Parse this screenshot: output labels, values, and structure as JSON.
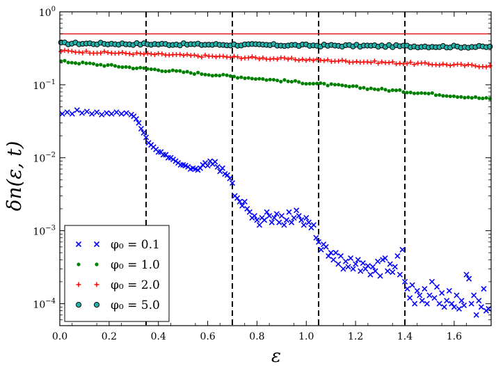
{
  "chart_data": {
    "type": "scatter",
    "title": "",
    "xlabel": "ε",
    "ylabel": "δn(ε, t)",
    "xlim": [
      0.0,
      1.75
    ],
    "ylim": [
      5e-05,
      1.0
    ],
    "yscale": "log",
    "grid": false,
    "legend_position": "lower-left",
    "x_ticks": [
      "0.0",
      "0.2",
      "0.4",
      "0.6",
      "0.8",
      "1.0",
      "1.2",
      "1.4",
      "1.6"
    ],
    "x_tick_values": [
      0.0,
      0.2,
      0.4,
      0.6,
      0.8,
      1.0,
      1.2,
      1.4,
      1.6
    ],
    "y_tick_values": [
      0.0001,
      0.001,
      0.01,
      0.1,
      1.0
    ],
    "y_tick_exponents": [
      "−4",
      "−3",
      "−2",
      "−1",
      "0"
    ],
    "y_tick_base": "10",
    "reference_line": {
      "y": 0.5,
      "color": "#e31a1c"
    },
    "vlines": [
      0.35,
      0.7,
      1.05,
      1.4
    ],
    "series": [
      {
        "name": "φ₀ = 0.1",
        "marker": "x",
        "color": "#0000ff",
        "points": [
          [
            0.01,
            0.04
          ],
          [
            0.03,
            0.042
          ],
          [
            0.05,
            0.04
          ],
          [
            0.07,
            0.045
          ],
          [
            0.09,
            0.041
          ],
          [
            0.11,
            0.043
          ],
          [
            0.13,
            0.04
          ],
          [
            0.15,
            0.042
          ],
          [
            0.17,
            0.039
          ],
          [
            0.19,
            0.041
          ],
          [
            0.21,
            0.04
          ],
          [
            0.23,
            0.042
          ],
          [
            0.25,
            0.04
          ],
          [
            0.27,
            0.041
          ],
          [
            0.29,
            0.039
          ],
          [
            0.3,
            0.037
          ],
          [
            0.31,
            0.034
          ],
          [
            0.32,
            0.03
          ],
          [
            0.33,
            0.025
          ],
          [
            0.34,
            0.022
          ],
          [
            0.35,
            0.019
          ],
          [
            0.36,
            0.016
          ],
          [
            0.37,
            0.015
          ],
          [
            0.38,
            0.014
          ],
          [
            0.39,
            0.013
          ],
          [
            0.4,
            0.012
          ],
          [
            0.41,
            0.012
          ],
          [
            0.42,
            0.011
          ],
          [
            0.43,
            0.011
          ],
          [
            0.44,
            0.01
          ],
          [
            0.45,
            0.01
          ],
          [
            0.46,
            0.0095
          ],
          [
            0.47,
            0.009
          ],
          [
            0.48,
            0.0085
          ],
          [
            0.49,
            0.008
          ],
          [
            0.5,
            0.008
          ],
          [
            0.51,
            0.0078
          ],
          [
            0.52,
            0.0075
          ],
          [
            0.53,
            0.007
          ],
          [
            0.54,
            0.0072
          ],
          [
            0.55,
            0.007
          ],
          [
            0.56,
            0.0068
          ],
          [
            0.57,
            0.0072
          ],
          [
            0.58,
            0.008
          ],
          [
            0.59,
            0.0085
          ],
          [
            0.6,
            0.0078
          ],
          [
            0.61,
            0.009
          ],
          [
            0.62,
            0.0082
          ],
          [
            0.63,
            0.0088
          ],
          [
            0.64,
            0.0075
          ],
          [
            0.65,
            0.0065
          ],
          [
            0.66,
            0.0072
          ],
          [
            0.67,
            0.006
          ],
          [
            0.68,
            0.0058
          ],
          [
            0.69,
            0.0052
          ],
          [
            0.7,
            0.0045
          ],
          [
            0.71,
            0.003
          ],
          [
            0.72,
            0.0028
          ],
          [
            0.73,
            0.0025
          ],
          [
            0.74,
            0.0022
          ],
          [
            0.75,
            0.0025
          ],
          [
            0.76,
            0.002
          ],
          [
            0.77,
            0.0018
          ],
          [
            0.78,
            0.0015
          ],
          [
            0.79,
            0.0016
          ],
          [
            0.8,
            0.0014
          ],
          [
            0.81,
            0.0012
          ],
          [
            0.82,
            0.0015
          ],
          [
            0.83,
            0.0014
          ],
          [
            0.84,
            0.0018
          ],
          [
            0.85,
            0.0016
          ],
          [
            0.86,
            0.0013
          ],
          [
            0.87,
            0.0015
          ],
          [
            0.88,
            0.0017
          ],
          [
            0.89,
            0.0013
          ],
          [
            0.9,
            0.0016
          ],
          [
            0.91,
            0.0012
          ],
          [
            0.92,
            0.0014
          ],
          [
            0.93,
            0.0018
          ],
          [
            0.94,
            0.0013
          ],
          [
            0.95,
            0.0015
          ],
          [
            0.96,
            0.0019
          ],
          [
            0.97,
            0.0016
          ],
          [
            0.98,
            0.0014
          ],
          [
            0.99,
            0.0012
          ],
          [
            1.0,
            0.0015
          ],
          [
            1.01,
            0.0013
          ],
          [
            1.02,
            0.0011
          ],
          [
            1.03,
            0.0012
          ],
          [
            1.04,
            0.0008
          ],
          [
            1.05,
            0.0007
          ],
          [
            1.06,
            0.00055
          ],
          [
            1.07,
            0.00065
          ],
          [
            1.08,
            0.0006
          ],
          [
            1.09,
            0.00045
          ],
          [
            1.1,
            0.0005
          ],
          [
            1.11,
            0.0004
          ],
          [
            1.12,
            0.0005
          ],
          [
            1.13,
            0.00035
          ],
          [
            1.14,
            0.00045
          ],
          [
            1.15,
            0.0003
          ],
          [
            1.16,
            0.00038
          ],
          [
            1.17,
            0.00032
          ],
          [
            1.18,
            0.00042
          ],
          [
            1.19,
            0.0003
          ],
          [
            1.2,
            0.00035
          ],
          [
            1.21,
            0.0004
          ],
          [
            1.22,
            0.00028
          ],
          [
            1.23,
            0.00036
          ],
          [
            1.24,
            0.0003
          ],
          [
            1.25,
            0.00033
          ],
          [
            1.26,
            0.00025
          ],
          [
            1.27,
            0.00032
          ],
          [
            1.28,
            0.00028
          ],
          [
            1.29,
            0.00038
          ],
          [
            1.3,
            0.00024
          ],
          [
            1.31,
            0.0004
          ],
          [
            1.32,
            0.00042
          ],
          [
            1.33,
            0.00028
          ],
          [
            1.34,
            0.00035
          ],
          [
            1.35,
            0.00027
          ],
          [
            1.36,
            0.00032
          ],
          [
            1.37,
            0.00045
          ],
          [
            1.38,
            0.00025
          ],
          [
            1.39,
            0.00055
          ],
          [
            1.4,
            0.0002
          ],
          [
            1.41,
            0.00016
          ],
          [
            1.42,
            0.00012
          ],
          [
            1.43,
            0.00018
          ],
          [
            1.44,
            0.0001
          ],
          [
            1.45,
            0.00015
          ],
          [
            1.46,
            0.00013
          ],
          [
            1.47,
            0.00011
          ],
          [
            1.48,
            0.00016
          ],
          [
            1.49,
            0.0001
          ],
          [
            1.5,
            0.00013
          ],
          [
            1.51,
            0.0002
          ],
          [
            1.52,
            0.00012
          ],
          [
            1.53,
            0.00017
          ],
          [
            1.54,
            0.0001
          ],
          [
            1.55,
            0.00014
          ],
          [
            1.56,
            9e-05
          ],
          [
            1.57,
            0.00011
          ],
          [
            1.58,
            0.00015
          ],
          [
            1.59,
            0.0001
          ],
          [
            1.6,
            9e-05
          ],
          [
            1.61,
            0.00013
          ],
          [
            1.62,
            8.5e-05
          ],
          [
            1.63,
            0.00011
          ],
          [
            1.64,
            9.5e-05
          ],
          [
            1.65,
            0.00025
          ],
          [
            1.66,
            0.00022
          ],
          [
            1.67,
            0.0001
          ],
          [
            1.68,
            0.00013
          ],
          [
            1.69,
            7e-05
          ],
          [
            1.7,
            0.00011
          ],
          [
            1.71,
            9e-05
          ],
          [
            1.72,
            0.00016
          ],
          [
            1.73,
            8e-05
          ],
          [
            1.74,
            8.5e-05
          ]
        ]
      },
      {
        "name": "φ₀ = 1.0",
        "marker": "dot",
        "color": "#008000",
        "start_value": 0.21,
        "end_value": 0.064,
        "samples": 120
      },
      {
        "name": "φ₀ = 2.0",
        "marker": "plus",
        "color": "#ff0000",
        "start_value": 0.29,
        "end_value": 0.18,
        "samples": 120
      },
      {
        "name": "φ₀ = 5.0",
        "marker": "circle",
        "color": "#20b2aa",
        "start_value": 0.37,
        "end_value": 0.33,
        "samples": 120
      }
    ]
  }
}
